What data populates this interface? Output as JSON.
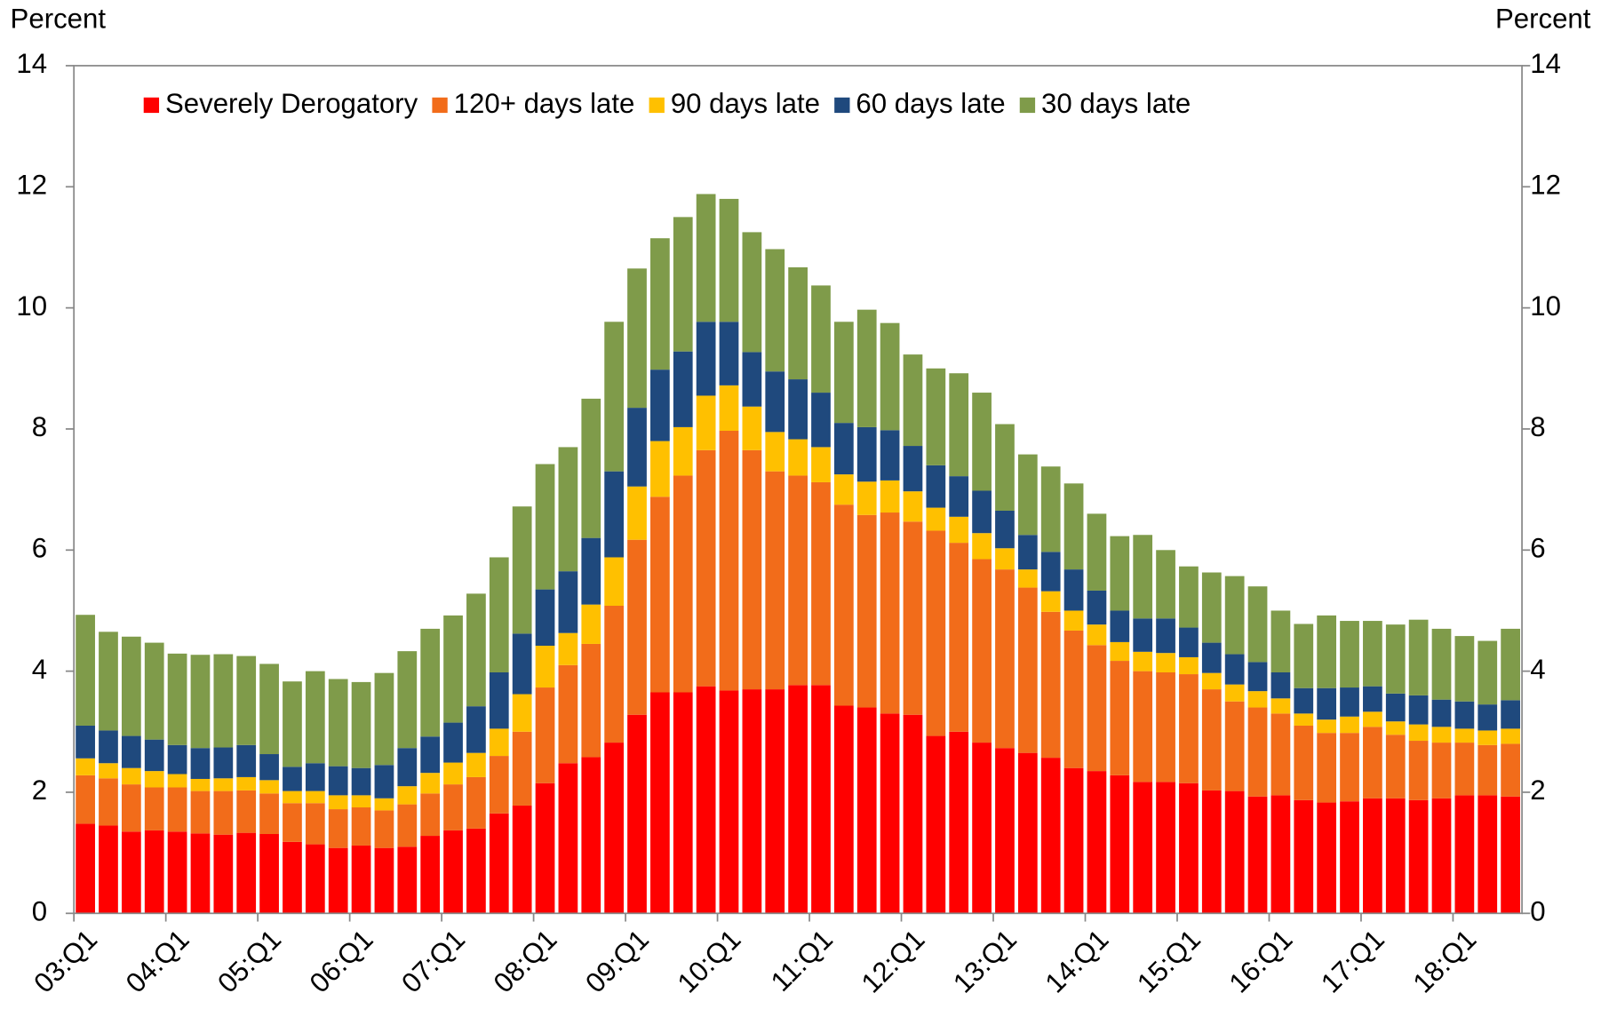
{
  "chart_data": {
    "type": "stacked_bar",
    "ylabel": "Percent",
    "y2label": "Percent",
    "categories": [
      "03:Q1",
      null,
      null,
      null,
      "04:Q1",
      null,
      null,
      null,
      "05:Q1",
      null,
      null,
      null,
      "06:Q1",
      null,
      null,
      null,
      "07:Q1",
      null,
      null,
      null,
      "08:Q1",
      null,
      null,
      null,
      "09:Q1",
      null,
      null,
      null,
      "10:Q1",
      null,
      null,
      null,
      "11:Q1",
      null,
      null,
      null,
      "12:Q1",
      null,
      null,
      null,
      "13:Q1",
      null,
      null,
      null,
      "14:Q1",
      null,
      null,
      null,
      "15:Q1",
      null,
      null,
      null,
      "16:Q1",
      null,
      null,
      null,
      "17:Q1",
      null,
      null,
      null,
      "18:Q1",
      null,
      null
    ],
    "series": [
      {
        "name": "Severely Derogatory",
        "color": "#ff0000",
        "values": [
          1.48,
          1.45,
          1.35,
          1.37,
          1.35,
          1.32,
          1.3,
          1.33,
          1.31,
          1.18,
          1.14,
          1.08,
          1.12,
          1.08,
          1.1,
          1.28,
          1.37,
          1.4,
          1.65,
          1.78,
          2.15,
          2.48,
          2.58,
          2.82,
          3.28,
          3.65,
          3.65,
          3.75,
          3.68,
          3.7,
          3.7,
          3.77,
          3.77,
          3.43,
          3.4,
          3.3,
          3.28,
          2.93,
          3.0,
          2.82,
          2.73,
          2.65,
          2.57,
          2.4,
          2.35,
          2.28,
          2.17,
          2.17,
          2.15,
          2.03,
          2.02,
          1.93,
          1.95,
          1.87,
          1.83,
          1.85,
          1.9,
          1.9,
          1.87,
          1.9,
          1.95,
          1.95,
          1.93
        ]
      },
      {
        "name": "120+ days late",
        "color": "#f26c1a",
        "values": [
          0.8,
          0.78,
          0.78,
          0.71,
          0.73,
          0.7,
          0.72,
          0.7,
          0.67,
          0.64,
          0.68,
          0.64,
          0.63,
          0.62,
          0.7,
          0.7,
          0.76,
          0.85,
          0.95,
          1.22,
          1.58,
          1.62,
          1.87,
          2.26,
          2.89,
          3.23,
          3.58,
          3.9,
          4.29,
          3.95,
          3.6,
          3.46,
          3.35,
          3.32,
          3.18,
          3.32,
          3.19,
          3.39,
          3.12,
          3.03,
          2.95,
          2.73,
          2.41,
          2.27,
          2.08,
          1.89,
          1.83,
          1.81,
          1.8,
          1.67,
          1.48,
          1.47,
          1.35,
          1.23,
          1.15,
          1.13,
          1.18,
          1.05,
          0.98,
          0.92,
          0.87,
          0.83,
          0.87
        ]
      },
      {
        "name": "90 days late",
        "color": "#ffc000",
        "values": [
          0.28,
          0.25,
          0.27,
          0.27,
          0.22,
          0.2,
          0.21,
          0.22,
          0.22,
          0.2,
          0.2,
          0.23,
          0.2,
          0.2,
          0.3,
          0.34,
          0.36,
          0.4,
          0.45,
          0.62,
          0.69,
          0.53,
          0.65,
          0.8,
          0.88,
          0.92,
          0.8,
          0.9,
          0.75,
          0.72,
          0.65,
          0.6,
          0.58,
          0.5,
          0.55,
          0.53,
          0.5,
          0.38,
          0.43,
          0.43,
          0.35,
          0.3,
          0.34,
          0.33,
          0.34,
          0.31,
          0.32,
          0.32,
          0.28,
          0.27,
          0.28,
          0.27,
          0.25,
          0.2,
          0.22,
          0.27,
          0.25,
          0.22,
          0.27,
          0.26,
          0.23,
          0.24,
          0.25
        ]
      },
      {
        "name": "60 days late",
        "color": "#1f497d",
        "values": [
          0.54,
          0.54,
          0.53,
          0.52,
          0.48,
          0.51,
          0.51,
          0.53,
          0.43,
          0.4,
          0.46,
          0.48,
          0.45,
          0.55,
          0.63,
          0.6,
          0.66,
          0.77,
          0.93,
          1.0,
          0.93,
          1.02,
          1.1,
          1.42,
          1.3,
          1.18,
          1.25,
          1.22,
          1.05,
          0.9,
          1.0,
          0.99,
          0.9,
          0.85,
          0.9,
          0.83,
          0.75,
          0.7,
          0.67,
          0.7,
          0.62,
          0.57,
          0.65,
          0.68,
          0.56,
          0.52,
          0.55,
          0.57,
          0.49,
          0.5,
          0.5,
          0.48,
          0.43,
          0.42,
          0.52,
          0.48,
          0.42,
          0.46,
          0.48,
          0.45,
          0.45,
          0.43,
          0.47
        ]
      },
      {
        "name": "30 days late",
        "color": "#7f9b4a",
        "values": [
          1.83,
          1.63,
          1.64,
          1.6,
          1.51,
          1.54,
          1.54,
          1.47,
          1.49,
          1.41,
          1.52,
          1.44,
          1.42,
          1.52,
          1.6,
          1.78,
          1.77,
          1.86,
          1.9,
          2.1,
          2.07,
          2.05,
          2.3,
          2.47,
          2.3,
          2.17,
          2.22,
          2.11,
          2.03,
          1.98,
          2.02,
          1.85,
          1.77,
          1.67,
          1.94,
          1.77,
          1.51,
          1.6,
          1.7,
          1.62,
          1.43,
          1.33,
          1.41,
          1.42,
          1.27,
          1.23,
          1.38,
          1.13,
          1.01,
          1.16,
          1.29,
          1.25,
          1.02,
          1.06,
          1.2,
          1.1,
          1.08,
          1.14,
          1.25,
          1.17,
          1.08,
          1.05,
          1.18
        ]
      }
    ],
    "ylim": [
      0,
      14
    ],
    "yticks": [
      0,
      2,
      4,
      6,
      8,
      10,
      12,
      14
    ],
    "y2lim": [
      0,
      14
    ],
    "y2ticks": [
      0,
      2,
      4,
      6,
      8,
      10,
      12,
      14
    ],
    "legend": "top"
  }
}
